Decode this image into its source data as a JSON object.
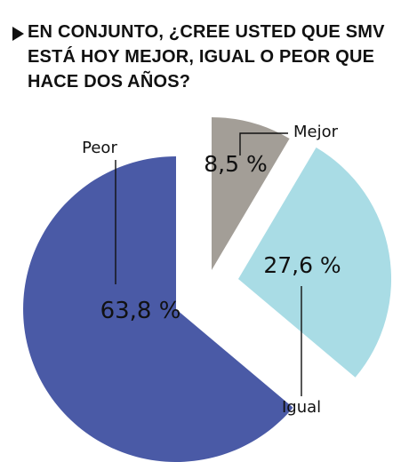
{
  "title": "EN CONJUNTO, ¿CREE USTED QUE SMV ESTÁ HOY MEJOR, IGUAL O PEOR QUE HACE DOS AÑOS?",
  "chart_data": {
    "type": "pie",
    "title": "EN CONJUNTO, ¿CREE USTED QUE SMV ESTÁ HOY MEJOR, IGUAL O PEOR QUE HACE DOS AÑOS?",
    "slices": [
      {
        "label": "Mejor",
        "value": 8.5,
        "value_label": "8,5 %",
        "color": "#a39e97"
      },
      {
        "label": "Igual",
        "value": 27.6,
        "value_label": "27,6 %",
        "color": "#a9dce5"
      },
      {
        "label": "Peor",
        "value": 63.8,
        "value_label": "63,8 %",
        "color": "#4a5aa6"
      }
    ],
    "start_angle_deg": 0,
    "direction": "clockwise",
    "exploded": true,
    "legend": "none"
  }
}
